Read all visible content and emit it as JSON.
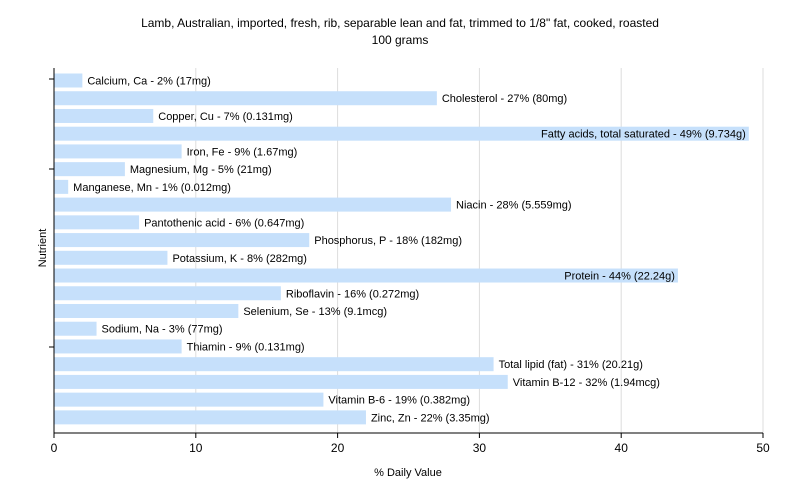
{
  "chart_data": {
    "type": "bar",
    "orientation": "horizontal",
    "title": "Lamb, Australian, imported, fresh, rib, separable lean and fat, trimmed to 1/8\" fat, cooked, roasted",
    "subtitle": "100 grams",
    "xlabel": "% Daily Value",
    "ylabel": "Nutrient",
    "xlim": [
      0,
      50
    ],
    "xticks": [
      0,
      10,
      20,
      30,
      40,
      50
    ],
    "grid": true,
    "bar_color": "#c6e0fb",
    "grid_color": "#dddddd",
    "categories": [
      "Calcium, Ca",
      "Cholesterol",
      "Copper, Cu",
      "Fatty acids, total saturated",
      "Iron, Fe",
      "Magnesium, Mg",
      "Manganese, Mn",
      "Niacin",
      "Pantothenic acid",
      "Phosphorus, P",
      "Potassium, K",
      "Protein",
      "Riboflavin",
      "Selenium, Se",
      "Sodium, Na",
      "Thiamin",
      "Total lipid (fat)",
      "Vitamin B-12",
      "Vitamin B-6",
      "Zinc, Zn"
    ],
    "values": [
      2,
      27,
      7,
      49,
      9,
      5,
      1,
      28,
      6,
      18,
      8,
      44,
      16,
      13,
      3,
      9,
      31,
      32,
      19,
      22
    ],
    "labels": [
      "Calcium, Ca - 2% (17mg)",
      "Cholesterol - 27% (80mg)",
      "Copper, Cu - 7% (0.131mg)",
      "Fatty acids, total saturated - 49% (9.734g)",
      "Iron, Fe - 9% (1.67mg)",
      "Magnesium, Mg - 5% (21mg)",
      "Manganese, Mn - 1% (0.012mg)",
      "Niacin - 28% (5.559mg)",
      "Pantothenic acid - 6% (0.647mg)",
      "Phosphorus, P - 18% (182mg)",
      "Potassium, K - 8% (282mg)",
      "Protein - 44% (22.24g)",
      "Riboflavin - 16% (0.272mg)",
      "Selenium, Se - 13% (9.1mcg)",
      "Sodium, Na - 3% (77mg)",
      "Thiamin - 9% (0.131mg)",
      "Total lipid (fat) - 31% (20.21g)",
      "Vitamin B-12 - 32% (1.94mcg)",
      "Vitamin B-6 - 19% (0.382mg)",
      "Zinc, Zn - 22% (3.35mg)"
    ]
  }
}
